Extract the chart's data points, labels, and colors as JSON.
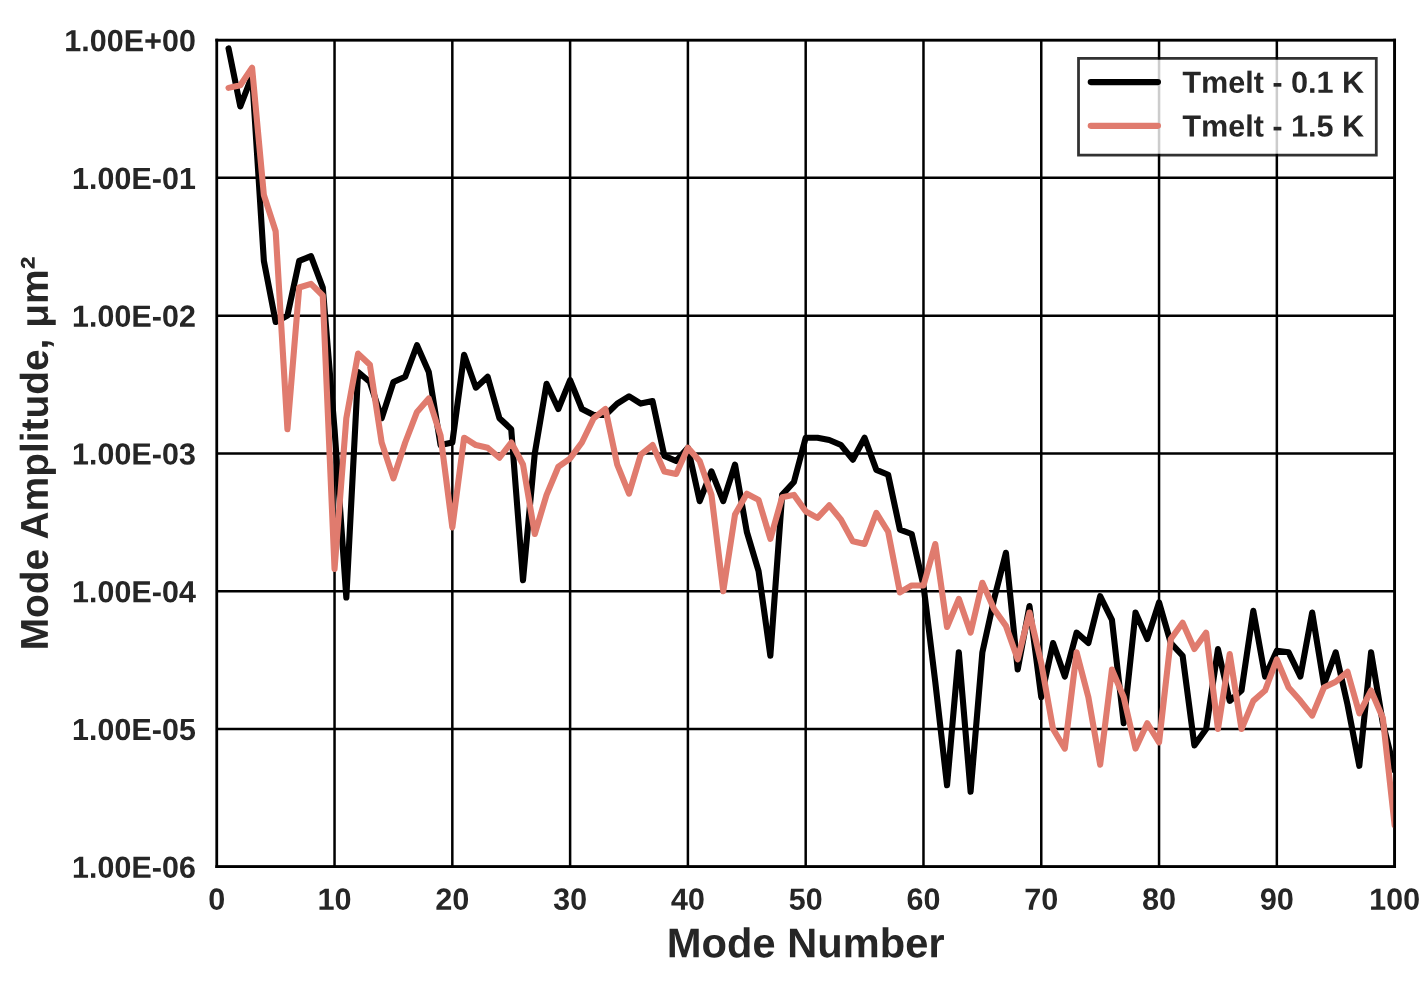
{
  "chart_data": {
    "type": "line",
    "xlabel": "Mode Number",
    "ylabel": "Mode Amplitude, μm²",
    "log": "y",
    "grid": true,
    "legend": "top right",
    "marker": "none",
    "line_style": "solid",
    "xlim": [
      0,
      100
    ],
    "xticks": [
      0,
      10,
      20,
      30,
      40,
      50,
      60,
      70,
      80,
      90,
      100
    ],
    "ylim": [
      1e-06,
      1
    ],
    "yticks": [
      {
        "value": 1e-06,
        "label": "1.00E-06"
      },
      {
        "value": 1e-05,
        "label": "1.00E-05"
      },
      {
        "value": 0.0001,
        "label": "1.00E-04"
      },
      {
        "value": 0.001,
        "label": "1.00E-03"
      },
      {
        "value": 0.01,
        "label": "1.00E-02"
      },
      {
        "value": 0.1,
        "label": "1.00E-01"
      },
      {
        "value": 1,
        "label": "1.00E+00"
      }
    ],
    "x": [
      1,
      2,
      3,
      4,
      5,
      6,
      7,
      8,
      9,
      10,
      11,
      12,
      13,
      14,
      15,
      16,
      17,
      18,
      19,
      20,
      21,
      22,
      23,
      24,
      25,
      26,
      27,
      28,
      29,
      30,
      31,
      32,
      33,
      34,
      35,
      36,
      37,
      38,
      39,
      40,
      41,
      42,
      43,
      44,
      45,
      46,
      47,
      48,
      49,
      50,
      51,
      52,
      53,
      54,
      55,
      56,
      57,
      58,
      59,
      60,
      61,
      62,
      63,
      64,
      65,
      66,
      67,
      68,
      69,
      70,
      71,
      72,
      73,
      74,
      75,
      76,
      77,
      78,
      79,
      80,
      81,
      82,
      83,
      84,
      85,
      86,
      87,
      88,
      89,
      90,
      91,
      92,
      93,
      94,
      95,
      96,
      97,
      98,
      99,
      100
    ],
    "series": [
      {
        "name": "Tmelt - 0.1 K",
        "color": "#000000",
        "values": [
          0.87,
          0.33,
          0.55,
          0.025,
          0.009,
          0.01,
          0.025,
          0.027,
          0.016,
          0.0015,
          9e-05,
          0.0039,
          0.0033,
          0.0018,
          0.0033,
          0.0036,
          0.0061,
          0.0039,
          0.00115,
          0.0012,
          0.0052,
          0.003,
          0.0036,
          0.0018,
          0.0015,
          0.00012,
          0.001,
          0.0032,
          0.0021,
          0.0034,
          0.0021,
          0.0019,
          0.0019,
          0.0023,
          0.0026,
          0.0023,
          0.0024,
          0.00096,
          0.00088,
          0.0011,
          0.00045,
          0.00074,
          0.00045,
          0.00083,
          0.00027,
          0.00014,
          3.4e-05,
          0.0005,
          0.00062,
          0.0013,
          0.0013,
          0.00125,
          0.00115,
          0.0009,
          0.0013,
          0.00076,
          0.0007,
          0.00028,
          0.00026,
          0.00011,
          2.2e-05,
          3.9e-06,
          3.6e-05,
          3.5e-06,
          3.6e-05,
          8.8e-05,
          0.00019,
          2.7e-05,
          7.8e-05,
          1.7e-05,
          4.2e-05,
          2.4e-05,
          5e-05,
          4.2e-05,
          9.2e-05,
          6.2e-05,
          1.1e-05,
          7e-05,
          4.5e-05,
          8.3e-05,
          4.2e-05,
          3.4e-05,
          7.6e-06,
          1e-05,
          3.8e-05,
          1.6e-05,
          1.9e-05,
          7.2e-05,
          2.4e-05,
          3.7e-05,
          3.6e-05,
          2.4e-05,
          7e-05,
          2.1e-05,
          3.6e-05,
          1.5e-05,
          5.4e-06,
          3.6e-05,
          1.1e-05,
          5e-06
        ]
      },
      {
        "name": "Tmelt - 1.5 K",
        "color": "#e07b6e",
        "values": [
          0.45,
          0.47,
          0.63,
          0.075,
          0.041,
          0.0015,
          0.016,
          0.017,
          0.014,
          0.000145,
          0.0018,
          0.0053,
          0.0044,
          0.0012,
          0.00066,
          0.0012,
          0.002,
          0.0025,
          0.00135,
          0.00029,
          0.0013,
          0.00115,
          0.0011,
          0.00093,
          0.0012,
          0.00083,
          0.00026,
          0.0005,
          0.0008,
          0.00092,
          0.0012,
          0.0018,
          0.0021,
          0.00083,
          0.00051,
          0.00098,
          0.00115,
          0.00074,
          0.00071,
          0.0011,
          0.00088,
          0.0005,
          0.0001,
          0.00036,
          0.00051,
          0.00046,
          0.00024,
          0.00048,
          0.0005,
          0.00038,
          0.00034,
          0.00042,
          0.00033,
          0.00023,
          0.00022,
          0.00037,
          0.00027,
          9.8e-05,
          0.00011,
          0.00011,
          0.00022,
          5.5e-05,
          8.8e-05,
          5e-05,
          0.000115,
          7.4e-05,
          5.6e-05,
          3.2e-05,
          7e-05,
          3e-05,
          1e-05,
          7.2e-06,
          3.6e-05,
          1.7e-05,
          5.5e-06,
          2.7e-05,
          1.7e-05,
          7.2e-06,
          1.1e-05,
          8e-06,
          4.5e-05,
          5.9e-05,
          3.8e-05,
          5e-05,
          1e-05,
          3.5e-05,
          1e-05,
          1.6e-05,
          1.9e-05,
          3.2e-05,
          2e-05,
          1.6e-05,
          1.25e-05,
          2e-05,
          2.2e-05,
          2.6e-05,
          1.3e-05,
          1.9e-05,
          1.2e-05,
          2e-06
        ]
      }
    ]
  }
}
